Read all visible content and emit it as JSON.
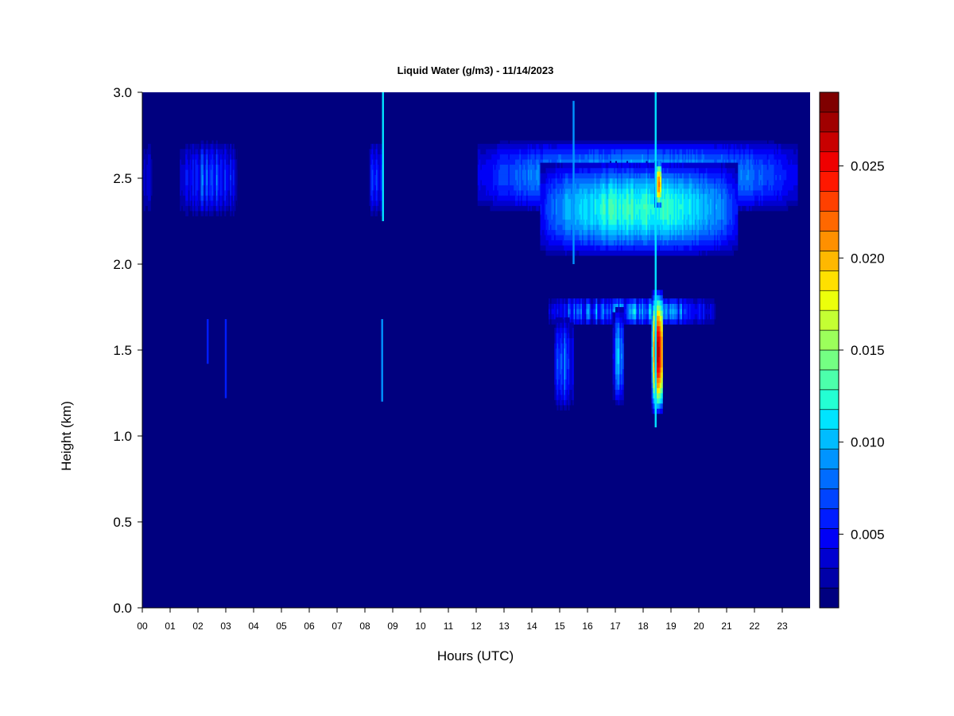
{
  "chart_data": {
    "type": "heatmap",
    "title": "Liquid Water (g/m3) - 11/14/2023",
    "xlabel": "Hours (UTC)",
    "ylabel": "Height (km)",
    "xlim": [
      0,
      24
    ],
    "ylim": [
      0.0,
      3.0
    ],
    "x_ticks": [
      "00",
      "01",
      "02",
      "03",
      "04",
      "05",
      "06",
      "07",
      "08",
      "09",
      "10",
      "11",
      "12",
      "13",
      "14",
      "15",
      "16",
      "17",
      "18",
      "19",
      "20",
      "21",
      "22",
      "23"
    ],
    "y_ticks": [
      "0.0",
      "0.5",
      "1.0",
      "1.5",
      "2.0",
      "2.5",
      "3.0"
    ],
    "colorbar": {
      "range": [
        0.001,
        0.029
      ],
      "ticks": [
        "0.005",
        "0.010",
        "0.015",
        "0.020",
        "0.025"
      ],
      "tick_values": [
        0.005,
        0.01,
        0.015,
        0.02,
        0.025
      ],
      "colors": [
        "#00007f",
        "#0000a8",
        "#0000d0",
        "#0000f6",
        "#001cff",
        "#0044ff",
        "#006cff",
        "#0094ff",
        "#00bcff",
        "#00e4ff",
        "#24ffd3",
        "#4cffab",
        "#74ff83",
        "#9cff5b",
        "#c4ff33",
        "#ecff0b",
        "#ffe000",
        "#ffb800",
        "#ff9000",
        "#ff6800",
        "#ff4000",
        "#ff1800",
        "#ef0000",
        "#c80000",
        "#a00000",
        "#7f0000"
      ]
    },
    "features": [
      {
        "t0": 0.0,
        "t1": 0.35,
        "h0": 2.25,
        "h1": 2.72,
        "peak": 0.006,
        "streaky": true
      },
      {
        "t0": 1.35,
        "t1": 3.4,
        "h0": 2.25,
        "h1": 2.72,
        "peak": 0.009,
        "streaky": true
      },
      {
        "t0": 8.15,
        "t1": 8.65,
        "h0": 2.25,
        "h1": 2.72,
        "peak": 0.01,
        "streaky": true
      },
      {
        "t0": 12.05,
        "t1": 23.55,
        "h0": 2.28,
        "h1": 2.72,
        "peak": 0.011,
        "streaky": false
      },
      {
        "t0": 14.3,
        "t1": 21.4,
        "h0": 2.02,
        "h1": 2.6,
        "peak": 0.014,
        "streaky": false
      },
      {
        "t0": 14.6,
        "t1": 20.6,
        "h0": 1.62,
        "h1": 1.8,
        "peak": 0.012,
        "streaky": true
      },
      {
        "t0": 14.8,
        "t1": 15.5,
        "h0": 1.12,
        "h1": 1.7,
        "peak": 0.01,
        "streaky": true
      },
      {
        "t0": 16.9,
        "t1": 17.3,
        "h0": 1.15,
        "h1": 1.75,
        "peak": 0.012,
        "streaky": true
      },
      {
        "t0": 18.3,
        "t1": 18.7,
        "h0": 1.1,
        "h1": 1.85,
        "peak": 0.028,
        "streaky": false
      },
      {
        "t0": 18.4,
        "t1": 18.65,
        "h0": 2.3,
        "h1": 2.6,
        "peak": 0.022,
        "streaky": false
      }
    ],
    "spikes": [
      {
        "t": 8.65,
        "h0": 2.25,
        "h1": 3.0,
        "value": 0.011
      },
      {
        "t": 8.62,
        "h0": 1.2,
        "h1": 1.68,
        "value": 0.009
      },
      {
        "t": 2.35,
        "h0": 1.42,
        "h1": 1.68,
        "value": 0.006
      },
      {
        "t": 3.0,
        "h0": 1.22,
        "h1": 1.68,
        "value": 0.006
      },
      {
        "t": 15.5,
        "h0": 2.0,
        "h1": 2.95,
        "value": 0.009
      },
      {
        "t": 18.45,
        "h0": 1.05,
        "h1": 3.0,
        "value": 0.011
      }
    ]
  }
}
